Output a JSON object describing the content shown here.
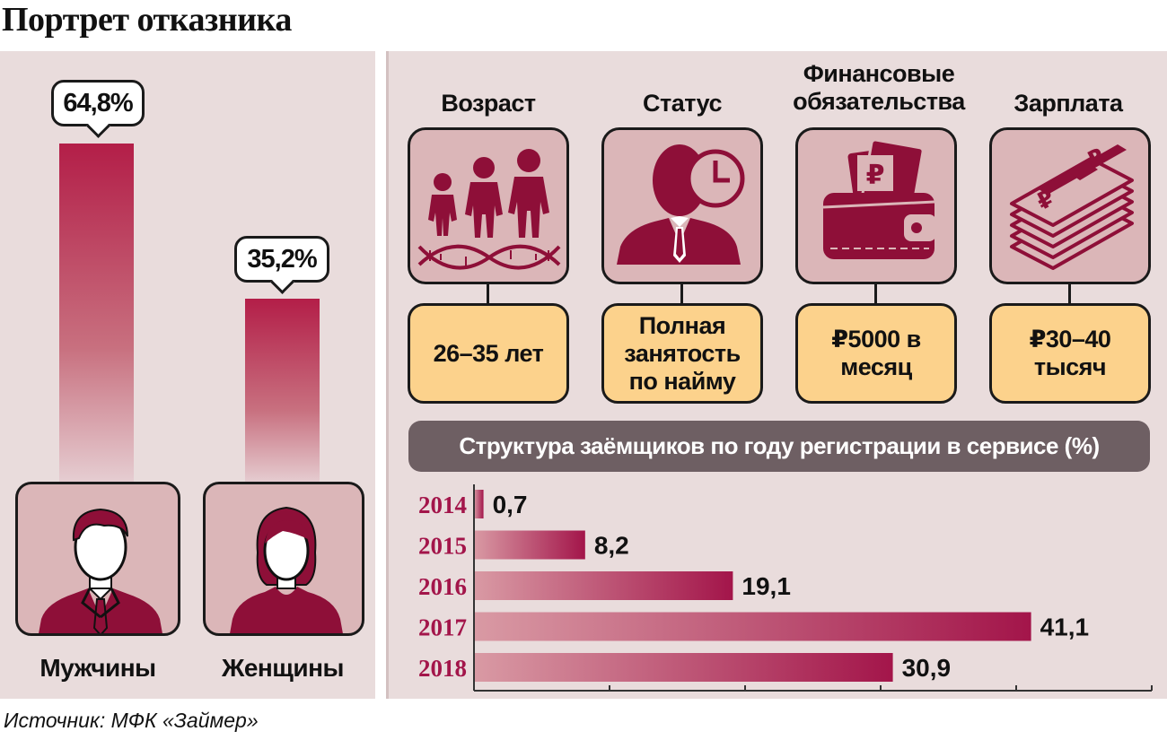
{
  "title": "Портрет отказника",
  "source": "Источник: МФК «Займер»",
  "gender": [
    {
      "label": "Мужчины",
      "value_label": "64,8%",
      "value": 64.8,
      "icon": "man-icon"
    },
    {
      "label": "Женщины",
      "value_label": "35,2%",
      "value": 35.2,
      "icon": "woman-icon"
    }
  ],
  "categories": [
    {
      "title": "Возраст",
      "value": "26–35 лет",
      "icon": "family-dna-icon"
    },
    {
      "title": "Статус",
      "value": "Полная занятость по найму",
      "icon": "employee-clock-icon"
    },
    {
      "title": "Финансовые обязательства",
      "value": "₽5000 в месяц",
      "icon": "wallet-icon"
    },
    {
      "title": "Зарплата",
      "value": "₽30–40 тысяч",
      "icon": "money-stack-icon"
    }
  ],
  "colors": {
    "accent": "#a3154a",
    "panel": "#e9dcdc",
    "icon_bg": "#dbb6b8",
    "value_bg": "#fcd28c",
    "header_bg": "#6e5f63"
  },
  "chart_data": [
    {
      "type": "bar",
      "orientation": "vertical",
      "categories": [
        "Мужчины",
        "Женщины"
      ],
      "values": [
        64.8,
        35.2
      ],
      "value_labels": [
        "64,8%",
        "35,2%"
      ],
      "unit": "%"
    },
    {
      "type": "bar",
      "orientation": "horizontal",
      "title": "Структура заёмщиков по году регистрации в сервисе (%)",
      "categories": [
        "2014",
        "2015",
        "2016",
        "2017",
        "2018"
      ],
      "values": [
        0.7,
        8.2,
        19.1,
        41.1,
        30.9
      ],
      "value_labels": [
        "0,7",
        "8,2",
        "19,1",
        "41,1",
        "30,9"
      ],
      "xlim": [
        0,
        50
      ],
      "grid": false
    }
  ]
}
